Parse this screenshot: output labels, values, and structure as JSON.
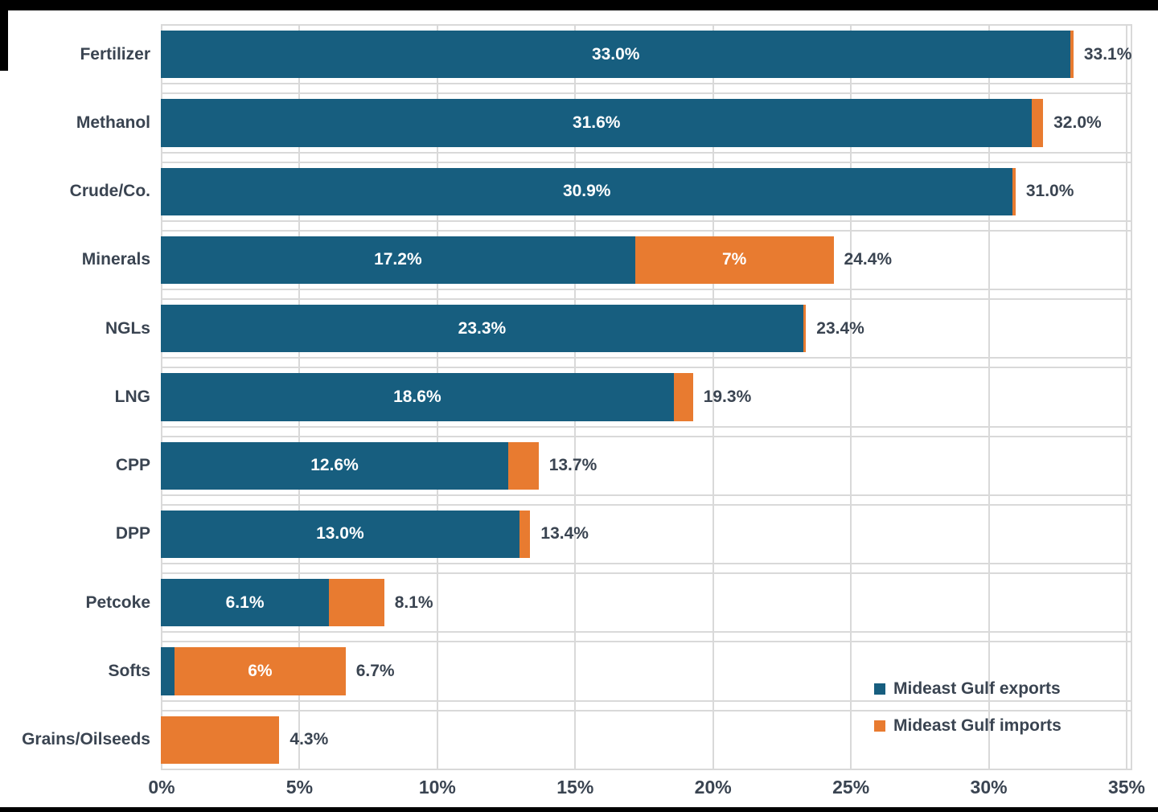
{
  "colors": {
    "exports_blue": "#175E7F",
    "imports_orange": "#E87B30",
    "gridline": "#D9D9D9",
    "label_text": "#3A4451",
    "bar_label_text": "#FFFFFF",
    "frame": "#000000",
    "background": "#FFFFFF"
  },
  "chart_data": {
    "type": "bar",
    "orientation": "horizontal",
    "stacked": true,
    "grid": "vertical",
    "xlim": [
      0,
      35
    ],
    "x_ticks": [
      "0%",
      "5%",
      "10%",
      "15%",
      "20%",
      "25%",
      "30%",
      "35%"
    ],
    "categories": [
      "Fertilizer",
      "Methanol",
      "Crude/Co.",
      "Minerals",
      "NGLs",
      "LNG",
      "CPP",
      "DPP",
      "Petcoke",
      "Softs",
      "Grains/Oilseeds"
    ],
    "series": [
      {
        "name": "Mideast Gulf exports",
        "color": "#175E7F",
        "values": [
          33.0,
          31.6,
          30.9,
          17.2,
          23.3,
          18.6,
          12.6,
          13.0,
          6.1,
          0.5,
          0
        ],
        "labels": [
          "33.0%",
          "31.6%",
          "30.9%",
          "17.2%",
          "23.3%",
          "18.6%",
          "12.6%",
          "13.0%",
          "6.1%",
          "",
          ""
        ]
      },
      {
        "name": "Mideast Gulf imports",
        "color": "#E87B30",
        "values": [
          0.1,
          0.4,
          0.1,
          7.2,
          0.1,
          0.7,
          1.1,
          0.4,
          2.0,
          6.2,
          4.3
        ],
        "labels": [
          "",
          "",
          "",
          "7%",
          "",
          "",
          "",
          "",
          "",
          "6%",
          ""
        ]
      }
    ],
    "total_labels": [
      "33.1%",
      "32.0%",
      "31.0%",
      "24.4%",
      "23.4%",
      "19.3%",
      "13.7%",
      "13.4%",
      "8.1%",
      "6.7%",
      "4.3%"
    ],
    "legend_position": "inside-bottom-right"
  }
}
